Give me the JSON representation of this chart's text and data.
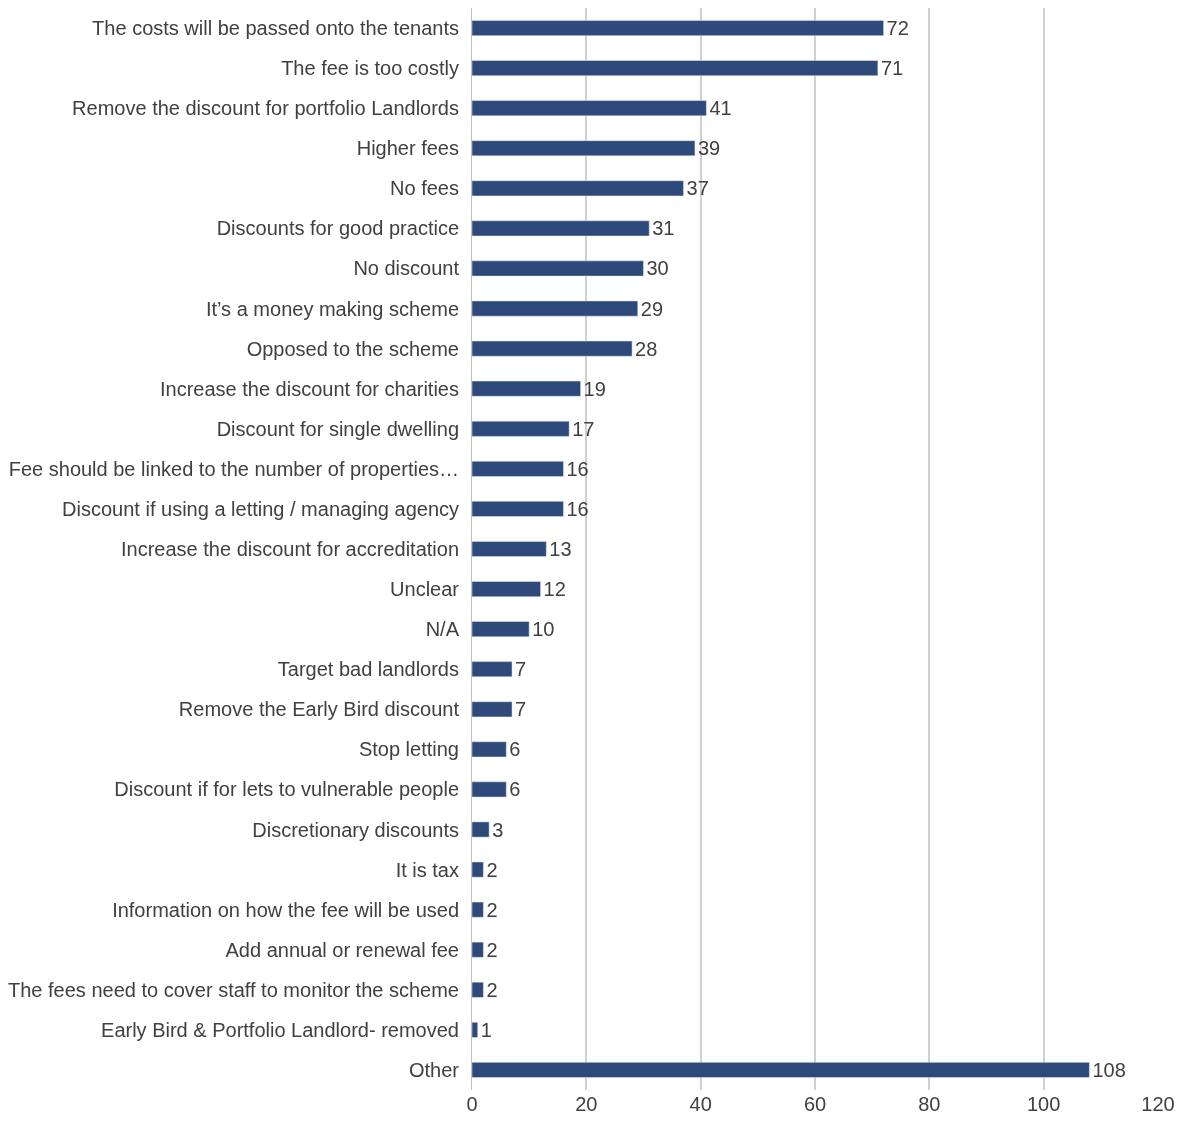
{
  "chart_data": {
    "type": "bar",
    "orientation": "horizontal",
    "categories": [
      "The costs will be passed onto the tenants",
      "The fee is too costly",
      "Remove the discount for portfolio Landlords",
      "Higher fees",
      "No fees",
      "Discounts for good practice",
      "No discount",
      "It’s a money making scheme",
      "Opposed to the scheme",
      "Increase the discount for charities",
      "Discount for single dwelling",
      "Fee should be linked to the number of properties…",
      "Discount if using a letting / managing agency",
      "Increase the discount for accreditation",
      "Unclear",
      "N/A",
      "Target bad landlords",
      "Remove the Early Bird discount",
      "Stop letting",
      "Discount if for lets to vulnerable people",
      "Discretionary discounts",
      "It is tax",
      "Information on how the fee will be used",
      "Add annual or renewal fee",
      "The fees need to cover staff to monitor the scheme",
      "Early Bird & Portfolio Landlord- removed",
      "Other"
    ],
    "values": [
      72,
      71,
      41,
      39,
      37,
      31,
      30,
      29,
      28,
      19,
      17,
      16,
      16,
      13,
      12,
      10,
      7,
      7,
      6,
      6,
      3,
      2,
      2,
      2,
      2,
      1,
      108
    ],
    "color": "#2e4a7a",
    "data_labels": true,
    "xlim": [
      0,
      120
    ],
    "xticks": [
      0,
      20,
      40,
      60,
      80,
      100,
      120
    ],
    "grid": "x",
    "legend": false
  }
}
